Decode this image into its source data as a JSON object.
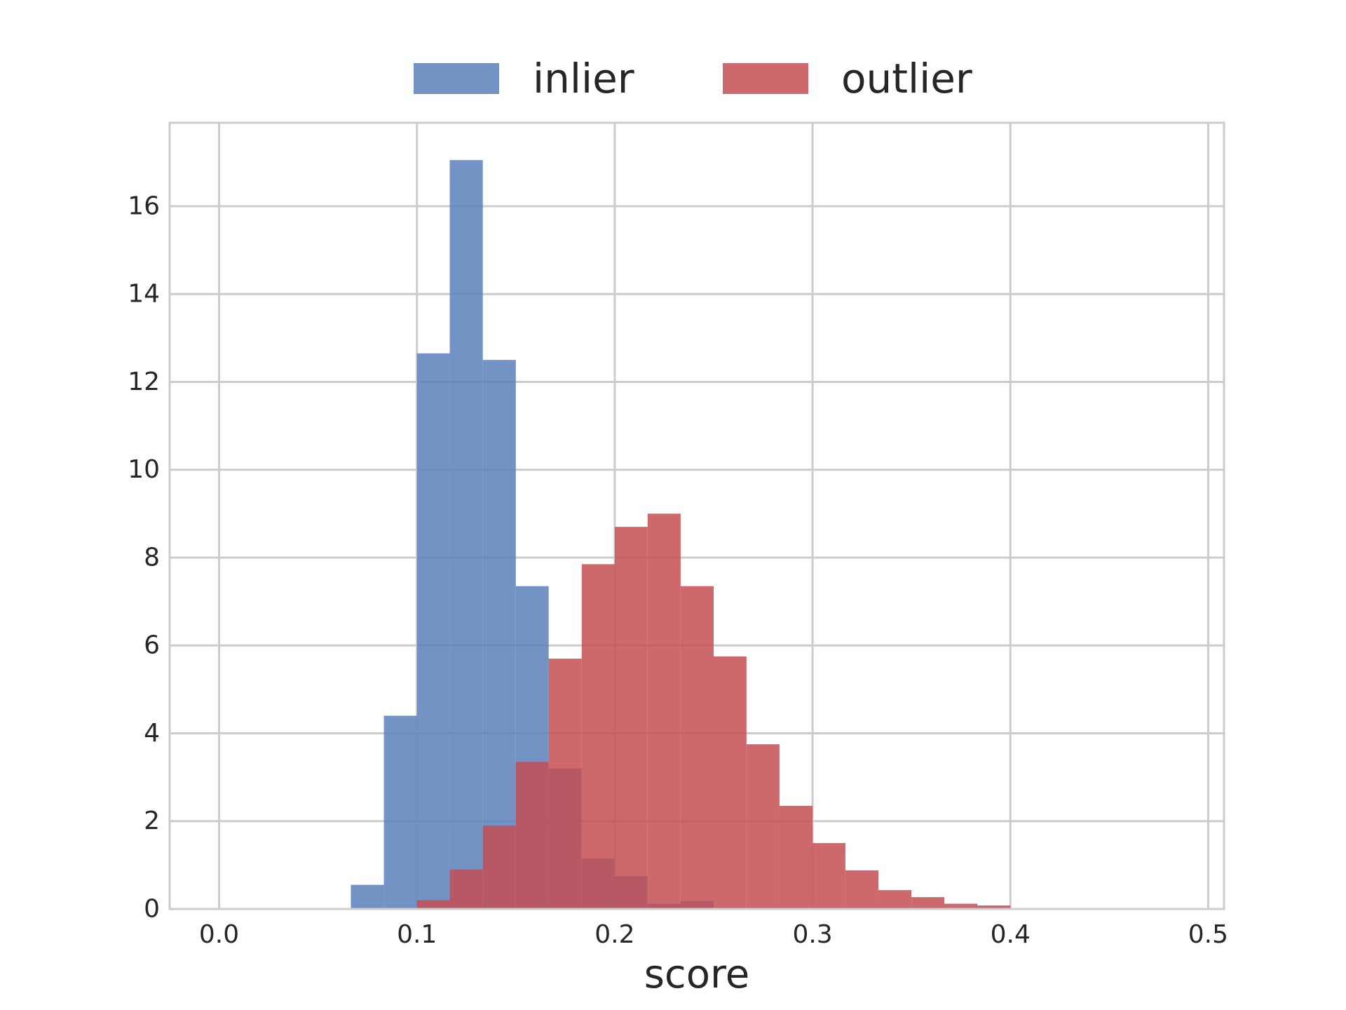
{
  "chart_data": {
    "type": "bar",
    "xlabel": "score",
    "ylabel": "",
    "xlim": [
      -0.025,
      0.508
    ],
    "ylim": [
      0,
      17.9
    ],
    "x_ticks": [
      0.0,
      0.1,
      0.2,
      0.3,
      0.4,
      0.5
    ],
    "x_tick_labels": [
      "0.0",
      "0.1",
      "0.2",
      "0.3",
      "0.4",
      "0.5"
    ],
    "y_ticks": [
      0,
      2,
      4,
      6,
      8,
      10,
      12,
      14,
      16
    ],
    "y_tick_labels": [
      "0",
      "2",
      "4",
      "6",
      "8",
      "10",
      "12",
      "14",
      "16"
    ],
    "grid": true,
    "legend_position": "top-center",
    "series": [
      {
        "name": "inlier",
        "color": "#5b80bb",
        "bins": [
          {
            "x0": 0.0666,
            "x1": 0.0833,
            "value": 0.55
          },
          {
            "x0": 0.0833,
            "x1": 0.1,
            "value": 4.4
          },
          {
            "x0": 0.1,
            "x1": 0.1166,
            "value": 12.65
          },
          {
            "x0": 0.1166,
            "x1": 0.1333,
            "value": 17.05
          },
          {
            "x0": 0.1333,
            "x1": 0.15,
            "value": 12.5
          },
          {
            "x0": 0.15,
            "x1": 0.1666,
            "value": 7.35
          },
          {
            "x0": 0.1666,
            "x1": 0.1833,
            "value": 3.2
          },
          {
            "x0": 0.1833,
            "x1": 0.2,
            "value": 1.15
          },
          {
            "x0": 0.2,
            "x1": 0.2166,
            "value": 0.75
          },
          {
            "x0": 0.2166,
            "x1": 0.2333,
            "value": 0.12
          },
          {
            "x0": 0.2333,
            "x1": 0.25,
            "value": 0.18
          }
        ]
      },
      {
        "name": "outlier",
        "color": "#c44e52",
        "bins": [
          {
            "x0": 0.1,
            "x1": 0.1166,
            "value": 0.2
          },
          {
            "x0": 0.1166,
            "x1": 0.1333,
            "value": 0.9
          },
          {
            "x0": 0.1333,
            "x1": 0.15,
            "value": 1.9
          },
          {
            "x0": 0.15,
            "x1": 0.1666,
            "value": 3.35
          },
          {
            "x0": 0.1666,
            "x1": 0.1833,
            "value": 5.7
          },
          {
            "x0": 0.1833,
            "x1": 0.2,
            "value": 7.85
          },
          {
            "x0": 0.2,
            "x1": 0.2166,
            "value": 8.7
          },
          {
            "x0": 0.2166,
            "x1": 0.2333,
            "value": 9.0
          },
          {
            "x0": 0.2333,
            "x1": 0.25,
            "value": 7.35
          },
          {
            "x0": 0.25,
            "x1": 0.2666,
            "value": 5.75
          },
          {
            "x0": 0.2666,
            "x1": 0.2833,
            "value": 3.75
          },
          {
            "x0": 0.2833,
            "x1": 0.3,
            "value": 2.35
          },
          {
            "x0": 0.3,
            "x1": 0.3166,
            "value": 1.5
          },
          {
            "x0": 0.3166,
            "x1": 0.3333,
            "value": 0.88
          },
          {
            "x0": 0.3333,
            "x1": 0.35,
            "value": 0.43
          },
          {
            "x0": 0.35,
            "x1": 0.3666,
            "value": 0.27
          },
          {
            "x0": 0.3666,
            "x1": 0.3833,
            "value": 0.12
          },
          {
            "x0": 0.3833,
            "x1": 0.4,
            "value": 0.08
          }
        ]
      }
    ]
  }
}
